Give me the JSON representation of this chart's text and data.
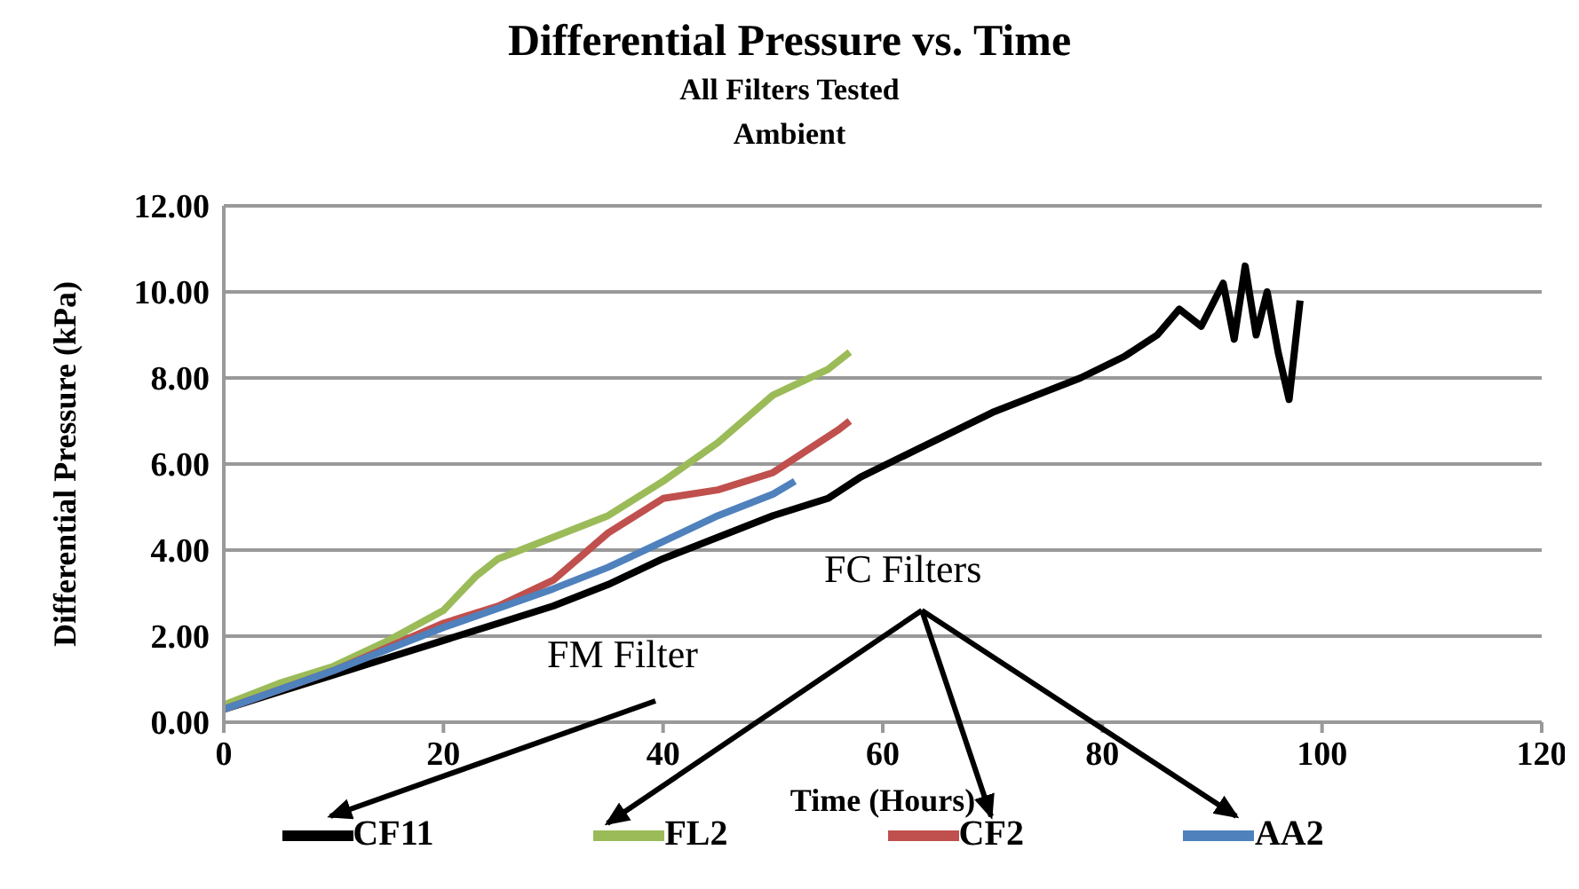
{
  "chart_data": {
    "type": "line",
    "title": "Differential Pressure vs. Time",
    "subtitle": "All Filters Tested\nAmbient",
    "xlabel": "Time (Hours)",
    "ylabel": "Differential Pressure (kPa)",
    "xlim": [
      0,
      120
    ],
    "xticks": [
      0,
      20,
      40,
      60,
      80,
      100,
      120
    ],
    "ylim": [
      0,
      12
    ],
    "yticks": [
      {
        "value": 0,
        "label": "0.00"
      },
      {
        "value": 2,
        "label": "2.00"
      },
      {
        "value": 4,
        "label": "4.00"
      },
      {
        "value": 6,
        "label": "6.00"
      },
      {
        "value": 8,
        "label": "8.00"
      },
      {
        "value": 10,
        "label": "10.00"
      },
      {
        "value": 12,
        "label": "12.00"
      }
    ],
    "grid": "y",
    "legend": "bottom",
    "marker": "none",
    "line_style": "solid",
    "annotations": [
      "FM Filter",
      "FC Filters"
    ],
    "series": [
      {
        "name": "CF11",
        "color": "#000000",
        "x": [
          0,
          5,
          10,
          15,
          20,
          25,
          30,
          35,
          40,
          45,
          50,
          55,
          58,
          62,
          66,
          70,
          74,
          78,
          82,
          85,
          87,
          89,
          91,
          92,
          93,
          94,
          95,
          96,
          97,
          98
        ],
        "values": [
          0.3,
          0.7,
          1.1,
          1.5,
          1.9,
          2.3,
          2.7,
          3.2,
          3.8,
          4.3,
          4.8,
          5.2,
          5.7,
          6.2,
          6.7,
          7.2,
          7.6,
          8.0,
          8.5,
          9.0,
          9.6,
          9.2,
          10.2,
          8.9,
          10.6,
          9.0,
          10.0,
          8.6,
          7.5,
          9.8
        ]
      },
      {
        "name": "FL2",
        "color": "#9bbb59",
        "x": [
          0,
          5,
          10,
          15,
          20,
          23,
          25,
          30,
          35,
          40,
          45,
          50,
          55,
          57
        ],
        "values": [
          0.4,
          0.9,
          1.3,
          1.9,
          2.6,
          3.4,
          3.8,
          4.3,
          4.8,
          5.6,
          6.5,
          7.6,
          8.2,
          8.6
        ]
      },
      {
        "name": "CF2",
        "color": "#c0504d",
        "x": [
          0,
          10,
          20,
          25,
          30,
          35,
          40,
          45,
          50,
          53,
          56,
          57
        ],
        "values": [
          0.3,
          1.2,
          2.3,
          2.7,
          3.3,
          4.4,
          5.2,
          5.4,
          5.8,
          6.3,
          6.8,
          7.0
        ]
      },
      {
        "name": "AA2",
        "color": "#4f81bd",
        "x": [
          0,
          10,
          20,
          30,
          35,
          40,
          45,
          50,
          52
        ],
        "values": [
          0.3,
          1.2,
          2.2,
          3.1,
          3.6,
          4.2,
          4.8,
          5.3,
          5.6
        ]
      }
    ]
  }
}
